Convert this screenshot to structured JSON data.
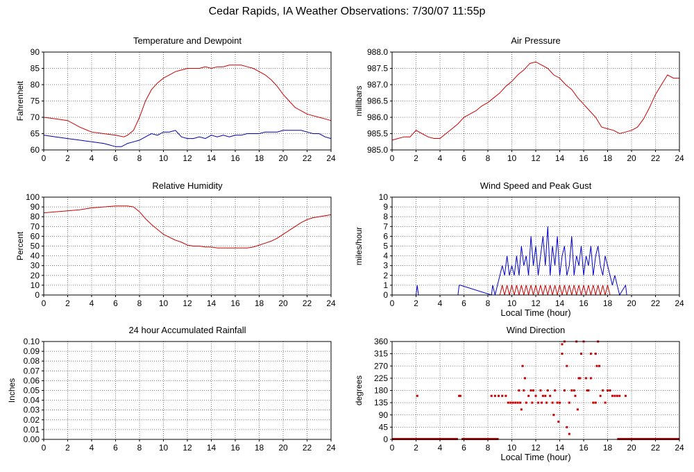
{
  "page": {
    "title": "Cedar Rapids, IA Weather Observations: 7/30/07 11:55p"
  },
  "chart_data": [
    {
      "id": "temp",
      "type": "line",
      "title": "Temperature and Dewpoint",
      "xlabel": "",
      "ylabel": "Fahrenheit",
      "xlim": [
        0,
        24
      ],
      "ylim": [
        60,
        90
      ],
      "x_ticks": [
        "0",
        "2",
        "4",
        "6",
        "8",
        "10",
        "12",
        "14",
        "16",
        "18",
        "20",
        "22",
        "24"
      ],
      "y_ticks": [
        "60",
        "65",
        "70",
        "75",
        "80",
        "85",
        "90"
      ],
      "grid": true,
      "series": [
        {
          "color": "#cc0000",
          "x": [
            0,
            1,
            2,
            3,
            4,
            5,
            6,
            6.7,
            7,
            7.5,
            8,
            8.5,
            9,
            9.5,
            10,
            10.5,
            11,
            11.5,
            12,
            12.5,
            13,
            13.5,
            14,
            14.5,
            15,
            15.5,
            16,
            16.5,
            17,
            17.5,
            18,
            18.5,
            19,
            19.5,
            20,
            20.5,
            21,
            21.5,
            22,
            22.5,
            23,
            23.5,
            24
          ],
          "y": [
            70,
            69.5,
            69,
            67,
            65.5,
            65,
            64.5,
            64,
            64.5,
            66,
            70,
            75,
            78.5,
            80.5,
            82,
            83,
            84,
            84.5,
            85,
            85,
            85,
            85.5,
            85,
            85.5,
            85.5,
            86,
            86,
            86,
            85.5,
            85,
            84,
            83,
            81.5,
            79.5,
            77,
            75,
            73,
            72,
            71,
            70.5,
            70,
            69.5,
            69
          ]
        },
        {
          "color": "#0000aa",
          "x": [
            0,
            1,
            2,
            3,
            4,
            5,
            5.5,
            6,
            6.5,
            7,
            7.5,
            8,
            8.5,
            9,
            9.5,
            10,
            10.5,
            11,
            11.5,
            12,
            12.5,
            13,
            13.5,
            14,
            14.5,
            15,
            15.5,
            16,
            16.5,
            17,
            17.5,
            18,
            18.5,
            19,
            19.5,
            20,
            20.5,
            21,
            21.5,
            22,
            22.5,
            23,
            23.5,
            24
          ],
          "y": [
            64.5,
            64,
            63.5,
            63,
            62.5,
            62,
            61.5,
            61,
            61,
            62,
            62.5,
            63,
            64,
            65,
            64.5,
            65.5,
            65.5,
            66,
            64,
            63.5,
            63.5,
            64,
            63.5,
            64.5,
            64,
            64.5,
            64,
            64.5,
            64.5,
            65,
            65,
            65,
            65.5,
            65.5,
            65.5,
            66,
            66,
            66,
            66,
            65.5,
            65,
            65,
            64,
            63.5
          ]
        }
      ]
    },
    {
      "id": "pressure",
      "type": "line",
      "title": "Air Pressure",
      "xlabel": "",
      "ylabel": "millibars",
      "xlim": [
        0,
        24
      ],
      "ylim": [
        985.0,
        988.0
      ],
      "x_ticks": [
        "0",
        "2",
        "4",
        "6",
        "8",
        "10",
        "12",
        "14",
        "16",
        "18",
        "20",
        "22",
        "24"
      ],
      "y_ticks": [
        "985.0",
        "985.5",
        "986.0",
        "986.5",
        "987.0",
        "987.5",
        "988.0"
      ],
      "grid": true,
      "series": [
        {
          "color": "#cc0000",
          "x": [
            0,
            0.5,
            1,
            1.5,
            2,
            2.5,
            3,
            3.5,
            4,
            4.5,
            5,
            5.5,
            6,
            6.5,
            7,
            7.5,
            8,
            8.5,
            9,
            9.5,
            10,
            10.5,
            11,
            11.5,
            12,
            12.5,
            13,
            13.5,
            14,
            14.5,
            15,
            15.5,
            16,
            16.5,
            17,
            17.5,
            18,
            18.5,
            19,
            19.5,
            20,
            20.5,
            21,
            21.5,
            22,
            22.5,
            23,
            23.5,
            24
          ],
          "y": [
            985.3,
            985.35,
            985.4,
            985.4,
            985.6,
            985.5,
            985.4,
            985.35,
            985.35,
            985.5,
            985.65,
            985.8,
            986.0,
            986.1,
            986.2,
            986.35,
            986.45,
            986.6,
            986.75,
            986.95,
            987.1,
            987.3,
            987.45,
            987.65,
            987.7,
            987.6,
            987.5,
            987.3,
            987.2,
            987.0,
            986.85,
            986.6,
            986.4,
            986.2,
            986.0,
            985.7,
            985.65,
            985.6,
            985.5,
            985.55,
            985.6,
            985.7,
            985.95,
            986.3,
            986.7,
            987.0,
            987.3,
            987.2,
            987.2
          ]
        }
      ]
    },
    {
      "id": "humidity",
      "type": "line",
      "title": "Relative Humidity",
      "xlabel": "",
      "ylabel": "Percent",
      "xlim": [
        0,
        24
      ],
      "ylim": [
        0,
        100
      ],
      "x_ticks": [
        "0",
        "2",
        "4",
        "6",
        "8",
        "10",
        "12",
        "14",
        "16",
        "18",
        "20",
        "22",
        "24"
      ],
      "y_ticks": [
        "0",
        "10",
        "20",
        "30",
        "40",
        "50",
        "60",
        "70",
        "80",
        "90",
        "100"
      ],
      "grid": true,
      "series": [
        {
          "color": "#cc0000",
          "x": [
            0,
            1,
            2,
            3,
            4,
            5,
            6,
            7,
            7.5,
            8,
            8.5,
            9,
            9.5,
            10,
            10.5,
            11,
            11.5,
            12,
            12.5,
            13,
            13.5,
            14,
            14.5,
            15,
            15.5,
            16,
            16.5,
            17,
            17.5,
            18,
            18.5,
            19,
            19.5,
            20,
            20.5,
            21,
            21.5,
            22,
            22.5,
            23,
            23.5,
            24
          ],
          "y": [
            84,
            85,
            86,
            87,
            89,
            90,
            91,
            91,
            90,
            85,
            78,
            72,
            67,
            62,
            59,
            56,
            54,
            51,
            50,
            50,
            49,
            49,
            48,
            48,
            48,
            48,
            48,
            48,
            49,
            51,
            53,
            55,
            58,
            62,
            66,
            70,
            74,
            77,
            79,
            80,
            81,
            82
          ]
        }
      ]
    },
    {
      "id": "wind",
      "type": "line",
      "title": "Wind Speed and Peak Gust",
      "xlabel": "Local Time (hour)",
      "ylabel": "miles/hour",
      "xlim": [
        0,
        24
      ],
      "ylim": [
        0,
        10
      ],
      "x_ticks": [
        "0",
        "2",
        "4",
        "6",
        "8",
        "10",
        "12",
        "14",
        "16",
        "18",
        "20",
        "22",
        "24"
      ],
      "y_ticks": [
        "0",
        "1",
        "2",
        "3",
        "4",
        "5",
        "6",
        "7",
        "8",
        "9",
        "10"
      ],
      "grid": true,
      "series": [
        {
          "color": "#0000cc",
          "x": [
            0,
            2,
            2.1,
            2.2,
            5.5,
            5.6,
            5.7,
            8.3,
            8.4,
            8.6,
            8.8,
            9,
            9.2,
            9.4,
            9.6,
            9.8,
            10,
            10.2,
            10.4,
            10.6,
            10.8,
            11,
            11.2,
            11.4,
            11.6,
            11.8,
            12,
            12.2,
            12.4,
            12.6,
            12.8,
            13,
            13.2,
            13.4,
            13.6,
            13.8,
            14,
            14.2,
            14.4,
            14.6,
            14.8,
            15,
            15.2,
            15.4,
            15.6,
            15.8,
            16,
            16.2,
            16.4,
            16.6,
            16.8,
            17,
            17.2,
            17.4,
            17.6,
            17.8,
            18,
            18.2,
            18.4,
            18.6,
            18.8,
            19,
            19.5,
            19.6,
            19.7,
            24
          ],
          "y": [
            0,
            0,
            1,
            0,
            0,
            1,
            1,
            0,
            1,
            0,
            1,
            2,
            3,
            2,
            4,
            2,
            3,
            2,
            4,
            2,
            5,
            3,
            4,
            2,
            6,
            3,
            5,
            2,
            4,
            6,
            3,
            7,
            2,
            5,
            3,
            6,
            2,
            4,
            5,
            2,
            3,
            6,
            2,
            4,
            3,
            5,
            2,
            4,
            3,
            5,
            2,
            4,
            5,
            3,
            2,
            4,
            3,
            2,
            1,
            2,
            1,
            0,
            1,
            0,
            0,
            0
          ]
        },
        {
          "color": "#cc0000",
          "x": [
            0,
            9,
            9.2,
            9.4,
            9.6,
            9.8,
            10,
            10.2,
            10.4,
            10.6,
            10.8,
            11,
            11.2,
            11.4,
            11.6,
            11.8,
            12,
            12.2,
            12.4,
            12.6,
            12.8,
            13,
            13.2,
            13.4,
            13.6,
            13.8,
            14,
            14.2,
            14.4,
            14.6,
            14.8,
            15,
            15.2,
            15.4,
            15.6,
            15.8,
            16,
            16.2,
            16.4,
            16.6,
            16.8,
            17,
            17.2,
            17.4,
            17.6,
            17.8,
            18,
            18.2,
            18.4,
            24
          ],
          "y": [
            0,
            0,
            1,
            0,
            1,
            0,
            1,
            0,
            1,
            0,
            1,
            0,
            1,
            0,
            1,
            0,
            1,
            0,
            1,
            0,
            1,
            0,
            1,
            0,
            1,
            0,
            1,
            0,
            1,
            0,
            1,
            0,
            1,
            0,
            1,
            0,
            1,
            0,
            1,
            0,
            1,
            0,
            1,
            0,
            1,
            0,
            1,
            0,
            0,
            0
          ]
        }
      ]
    },
    {
      "id": "rainfall",
      "type": "line",
      "title": "24 hour Accumulated Rainfall",
      "xlabel": "",
      "ylabel": "Inches",
      "xlim": [
        0,
        24
      ],
      "ylim": [
        0,
        0.1
      ],
      "x_ticks": [
        "0",
        "2",
        "4",
        "6",
        "8",
        "10",
        "12",
        "14",
        "16",
        "18",
        "20",
        "22",
        "24"
      ],
      "y_ticks": [
        "0.00",
        "0.01",
        "0.02",
        "0.03",
        "0.04",
        "0.05",
        "0.06",
        "0.07",
        "0.08",
        "0.09",
        "0.10"
      ],
      "grid": true,
      "series": [
        {
          "color": "#cc0000",
          "x": [
            0,
            24
          ],
          "y": [
            0,
            0
          ]
        }
      ]
    },
    {
      "id": "direction",
      "type": "scatter",
      "title": "Wind Direction",
      "xlabel": "Local Time (hour)",
      "ylabel": "degrees",
      "xlim": [
        0,
        24
      ],
      "ylim": [
        0,
        360
      ],
      "x_ticks": [
        "0",
        "2",
        "4",
        "6",
        "8",
        "10",
        "12",
        "14",
        "16",
        "18",
        "20",
        "22",
        "24"
      ],
      "y_ticks": [
        "0",
        "45",
        "90",
        "135",
        "180",
        "225",
        "270",
        "315",
        "360"
      ],
      "grid": true,
      "zero_ranges": [
        [
          0,
          5.5
        ],
        [
          5.8,
          8.9
        ],
        [
          18.8,
          24
        ]
      ],
      "series": [
        {
          "color": "#cc0000",
          "x": [
            2.1,
            5.6,
            5.7,
            8.3,
            8.6,
            8.9,
            9.2,
            9.5,
            9.7,
            9.9,
            10.1,
            10.3,
            10.5,
            10.7,
            10.9,
            11.0,
            11.2,
            11.4,
            11.6,
            11.8,
            12.0,
            12.2,
            12.4,
            12.6,
            12.8,
            13.0,
            13.2,
            13.4,
            13.6,
            13.8,
            14.0,
            14.2,
            14.4,
            14.6,
            14.8,
            15.0,
            15.2,
            15.4,
            15.6,
            15.8,
            16.0,
            16.2,
            16.4,
            16.6,
            16.8,
            17.0,
            17.2,
            17.4,
            17.6,
            17.8,
            18.0,
            18.2,
            18.4,
            18.6,
            18.8,
            19.0,
            19.5,
            10.6,
            10.8,
            11.1,
            12.5,
            13.5,
            14.4,
            14.6,
            14.8,
            15.3,
            15.7,
            16.3,
            16.6,
            17.1,
            17.3,
            11.7,
            12.9,
            13.9,
            14.2,
            15.5,
            17.0
          ],
          "y": [
            160,
            160,
            160,
            160,
            160,
            160,
            160,
            160,
            135,
            135,
            135,
            135,
            135,
            135,
            270,
            180,
            135,
            160,
            180,
            180,
            160,
            135,
            180,
            160,
            160,
            180,
            160,
            135,
            180,
            135,
            135,
            315,
            360,
            270,
            135,
            180,
            180,
            360,
            225,
            315,
            360,
            225,
            180,
            315,
            135,
            315,
            360,
            160,
            180,
            135,
            180,
            180,
            160,
            160,
            160,
            160,
            160,
            180,
            110,
            225,
            135,
            90,
            180,
            45,
            20,
            160,
            225,
            180,
            225,
            270,
            270,
            135,
            135,
            65,
            350,
            110,
            135
          ]
        }
      ]
    }
  ]
}
